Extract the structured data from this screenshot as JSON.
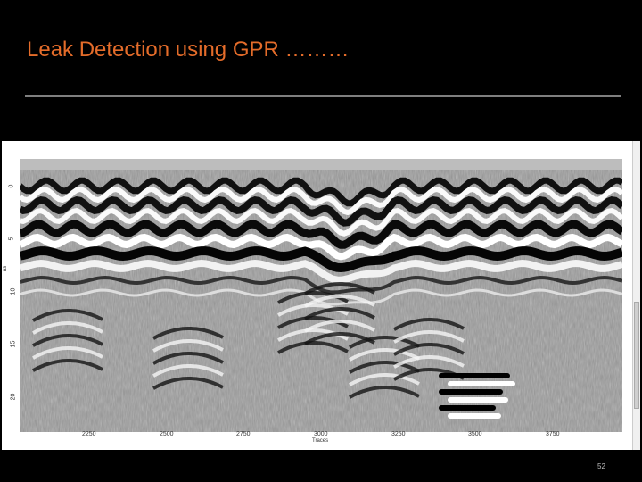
{
  "slide": {
    "title": "Leak Detection using GPR ………",
    "page_number": "52"
  },
  "figure": {
    "y_ticks": [
      "0",
      "5",
      "10",
      "15",
      "20"
    ],
    "x_ticks": [
      "2250",
      "2500",
      "2750",
      "3000",
      "3250",
      "3500",
      "3750"
    ],
    "x_axis_label": "Traces",
    "y_axis_label": "ns"
  },
  "colors": {
    "title": "#e46c2a",
    "background": "#000000",
    "rule": "#7f7f7f"
  }
}
